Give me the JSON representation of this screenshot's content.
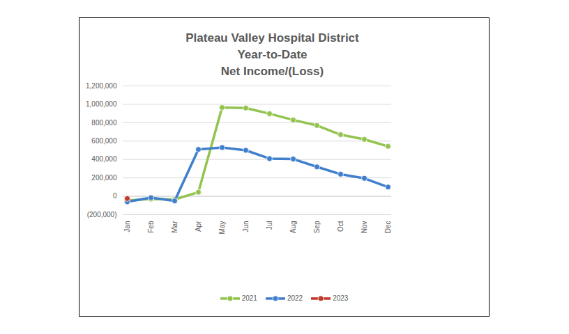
{
  "chart_data": {
    "type": "line",
    "title": "Plateau Valley Hospital District\nYear-to-Date\nNet Income/(Loss)",
    "categories": [
      "Jan",
      "Feb",
      "Mar",
      "Apr",
      "May",
      "Jun",
      "Jul",
      "Aug",
      "Sep",
      "Oct",
      "Nov",
      "Dec"
    ],
    "series": [
      {
        "name": "2021",
        "color": "#92c44f",
        "values": [
          -45000,
          -30000,
          -35000,
          45000,
          965000,
          960000,
          898000,
          830000,
          770000,
          670000,
          619000,
          543000
        ]
      },
      {
        "name": "2022",
        "color": "#3f7fcc",
        "values": [
          -60000,
          -15000,
          -50000,
          510000,
          530000,
          500000,
          410000,
          405000,
          320000,
          240000,
          195000,
          100000
        ]
      },
      {
        "name": "2023",
        "color": "#c0392b",
        "values": [
          -25000,
          null,
          null,
          null,
          null,
          null,
          null,
          null,
          null,
          null,
          null,
          null
        ]
      }
    ],
    "ylim": [
      -200000,
      1200000
    ],
    "yticks": [
      {
        "value": -200000,
        "label": "(200,000)"
      },
      0,
      {
        "value": 200000,
        "label": "200,000"
      },
      {
        "value": 400000,
        "label": "400,000"
      },
      {
        "value": 600000,
        "label": "600,000"
      },
      {
        "value": 800000,
        "label": "800,000"
      },
      {
        "value": 1000000,
        "label": "1,000,000"
      },
      {
        "value": 1200000,
        "label": "1,200,000"
      }
    ],
    "grid": true,
    "marker": "circle",
    "legend": "bottom"
  }
}
